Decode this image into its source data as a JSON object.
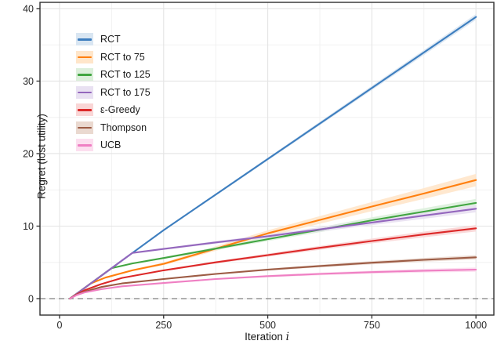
{
  "chart_data": {
    "type": "line",
    "title": "",
    "xlabel": "Iteration",
    "xlabel_var": "i",
    "ylabel": "Regret (lost utility)",
    "xlim": [
      -47,
      1043
    ],
    "ylim": [
      -2.27,
      40.86
    ],
    "xticks": [
      0,
      250,
      500,
      750,
      1000
    ],
    "yticks": [
      0,
      10,
      20,
      30,
      40
    ],
    "xtick_labels": [
      "0",
      "250",
      "500",
      "750",
      "1000"
    ],
    "ytick_labels": [
      "0",
      "10",
      "20",
      "30",
      "40"
    ],
    "minor_xticks": [
      125,
      375,
      625,
      875
    ],
    "minor_yticks": [
      5,
      15,
      25,
      35
    ],
    "grid": true,
    "legend_position": "top-left-inside",
    "zero_line": {
      "y": 0,
      "style": "dashed",
      "color": "#7f7f7f"
    },
    "colors": {
      "grid_major": "#e4e4e4",
      "grid_minor": "#f1f1f1",
      "panel_border": "#2f2f2f",
      "tick": "#2f2f2f",
      "text": "#1a1a1a"
    },
    "series": [
      {
        "key": "rct",
        "name": "RCT",
        "color": "#3d7ebf",
        "band_color": "#d9e6f2",
        "band_end": 0.4,
        "points": [
          [
            25,
            0
          ],
          [
            50,
            1.05
          ],
          [
            75,
            2.1
          ],
          [
            100,
            3.15
          ],
          [
            175,
            6.3
          ],
          [
            250,
            9.45
          ],
          [
            375,
            14.35
          ],
          [
            500,
            19.25
          ],
          [
            625,
            24.15
          ],
          [
            750,
            29.05
          ],
          [
            875,
            33.95
          ],
          [
            1000,
            38.85
          ]
        ]
      },
      {
        "key": "rct-to-75",
        "name": "RCT to 75",
        "color": "#ff7f0e",
        "band_color": "#ffe6ca",
        "band_end": 0.85,
        "points": [
          [
            25,
            0
          ],
          [
            50,
            1.05
          ],
          [
            75,
            2.1
          ],
          [
            110,
            2.9
          ],
          [
            175,
            3.9
          ],
          [
            250,
            4.8
          ],
          [
            375,
            6.9
          ],
          [
            500,
            9.0
          ],
          [
            625,
            10.85
          ],
          [
            750,
            12.7
          ],
          [
            875,
            14.5
          ],
          [
            1000,
            16.35
          ]
        ]
      },
      {
        "key": "rct-to-125",
        "name": "RCT to 125",
        "color": "#41a541",
        "band_color": "#dcefdb",
        "band_end": 0.55,
        "points": [
          [
            25,
            0
          ],
          [
            50,
            1.05
          ],
          [
            75,
            2.1
          ],
          [
            100,
            3.15
          ],
          [
            125,
            4.2
          ],
          [
            175,
            4.85
          ],
          [
            250,
            5.6
          ],
          [
            375,
            6.9
          ],
          [
            500,
            8.2
          ],
          [
            625,
            9.5
          ],
          [
            750,
            10.8
          ],
          [
            875,
            12.0
          ],
          [
            1000,
            13.2
          ]
        ]
      },
      {
        "key": "rct-to-175",
        "name": "RCT to 175",
        "color": "#9467bd",
        "band_color": "#e9e1f2",
        "band_end": 0.5,
        "points": [
          [
            25,
            0
          ],
          [
            50,
            1.05
          ],
          [
            75,
            2.1
          ],
          [
            100,
            3.15
          ],
          [
            125,
            4.2
          ],
          [
            150,
            5.25
          ],
          [
            175,
            6.3
          ],
          [
            250,
            6.85
          ],
          [
            375,
            7.75
          ],
          [
            500,
            8.6
          ],
          [
            625,
            9.55
          ],
          [
            750,
            10.5
          ],
          [
            875,
            11.45
          ],
          [
            1000,
            12.4
          ]
        ]
      },
      {
        "key": "eps-greedy",
        "name": "ε-Greedy",
        "color": "#dc2828",
        "band_color": "#f9d6d6",
        "band_end": 0.45,
        "points": [
          [
            25,
            0
          ],
          [
            40,
            0.55
          ],
          [
            60,
            1.15
          ],
          [
            100,
            2.0
          ],
          [
            150,
            2.85
          ],
          [
            250,
            3.9
          ],
          [
            375,
            5.0
          ],
          [
            500,
            6.0
          ],
          [
            625,
            7.0
          ],
          [
            750,
            7.95
          ],
          [
            875,
            8.85
          ],
          [
            1000,
            9.7
          ]
        ]
      },
      {
        "key": "thompson",
        "name": "Thompson",
        "color": "#9c5b44",
        "band_color": "#ead9d0",
        "band_end": 0.3,
        "points": [
          [
            25,
            0
          ],
          [
            40,
            0.5
          ],
          [
            60,
            0.95
          ],
          [
            100,
            1.6
          ],
          [
            150,
            2.1
          ],
          [
            250,
            2.7
          ],
          [
            375,
            3.4
          ],
          [
            500,
            4.0
          ],
          [
            625,
            4.5
          ],
          [
            750,
            4.95
          ],
          [
            875,
            5.35
          ],
          [
            1000,
            5.7
          ]
        ]
      },
      {
        "key": "ucb",
        "name": "UCB",
        "color": "#ef7fc3",
        "band_color": "#fcdeef",
        "band_end": 0.3,
        "points": [
          [
            25,
            0
          ],
          [
            40,
            0.45
          ],
          [
            60,
            0.85
          ],
          [
            100,
            1.3
          ],
          [
            150,
            1.7
          ],
          [
            250,
            2.15
          ],
          [
            375,
            2.7
          ],
          [
            500,
            3.1
          ],
          [
            625,
            3.4
          ],
          [
            750,
            3.65
          ],
          [
            875,
            3.85
          ],
          [
            1000,
            4.0
          ]
        ]
      }
    ]
  }
}
